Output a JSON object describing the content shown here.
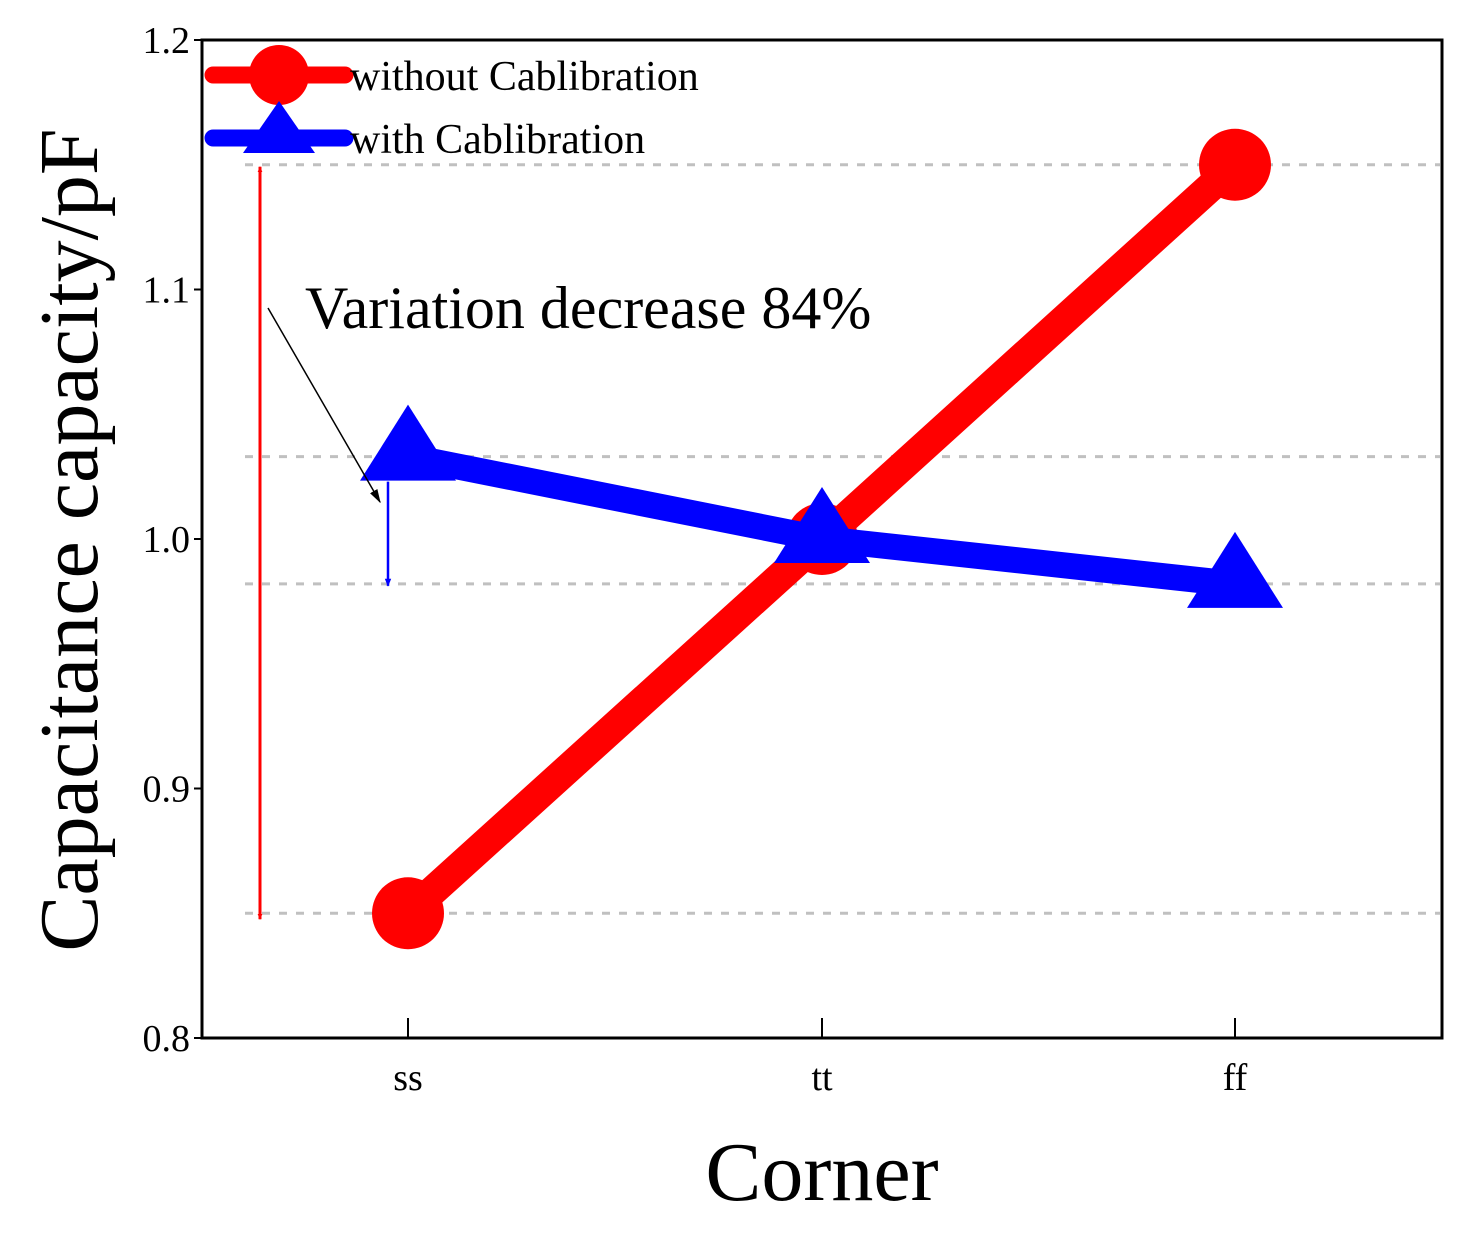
{
  "chart_data": {
    "type": "line",
    "title": "",
    "xlabel": "Corner",
    "ylabel": "Capacitance capacity/pF",
    "categories": [
      "ss",
      "tt",
      "ff"
    ],
    "ylim": [
      0.8,
      1.2
    ],
    "yticks": [
      "0.8",
      "0.9",
      "1.0",
      "1.1",
      "1.2"
    ],
    "grid": false,
    "reference_lines": [
      1.15,
      1.033,
      0.982,
      0.85
    ],
    "series": [
      {
        "name": "without Cablibration",
        "values": [
          0.85,
          1.0,
          1.15
        ],
        "color": "#ff0000",
        "marker": "circle"
      },
      {
        "name": "with Cablibration",
        "values": [
          1.033,
          1.0,
          0.982
        ],
        "color": "#0000ff",
        "marker": "triangle"
      }
    ],
    "annotations": [
      {
        "text": "Variation decrease 84%"
      }
    ],
    "range_arrows": [
      {
        "series": "without Cablibration",
        "from": 1.15,
        "to": 0.85,
        "color": "#ff0000"
      },
      {
        "series": "with Cablibration",
        "from": 1.033,
        "to": 0.982,
        "color": "#0000ff"
      }
    ],
    "legend_position": "top-left"
  }
}
